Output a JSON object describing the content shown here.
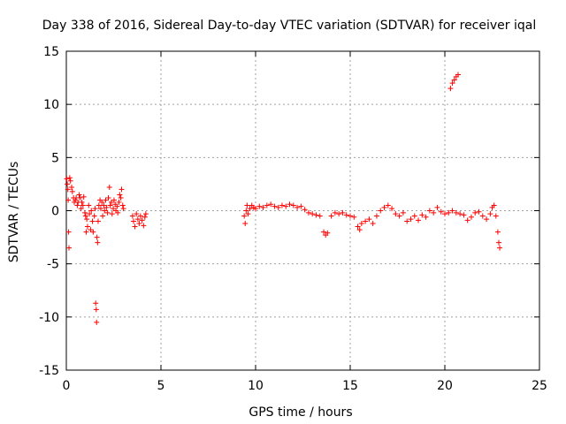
{
  "chart_data": {
    "type": "scatter",
    "title": "Day 338 of 2016, Sidereal Day-to-day VTEC variation (SDTVAR) for receiver iqal",
    "xlabel": "GPS time / hours",
    "ylabel": "SDTVAR / TECUs",
    "xlim": [
      0,
      25
    ],
    "ylim": [
      -15,
      15
    ],
    "xticks": [
      0,
      5,
      10,
      15,
      20,
      25
    ],
    "yticks": [
      -15,
      -10,
      -5,
      0,
      5,
      10,
      15
    ],
    "grid": true,
    "marker": "+",
    "color": "#ff0000",
    "series": [
      {
        "name": "SDTVAR",
        "points": [
          [
            0.02,
            3.0
          ],
          [
            0.05,
            2.5
          ],
          [
            0.08,
            2.0
          ],
          [
            0.1,
            1.0
          ],
          [
            0.12,
            -2.0
          ],
          [
            0.14,
            -3.5
          ],
          [
            0.18,
            3.1
          ],
          [
            0.22,
            2.8
          ],
          [
            0.28,
            2.2
          ],
          [
            0.32,
            1.8
          ],
          [
            0.38,
            1.2
          ],
          [
            0.42,
            0.8
          ],
          [
            0.48,
            1.0
          ],
          [
            0.52,
            1.2
          ],
          [
            0.58,
            0.5
          ],
          [
            0.62,
            0.8
          ],
          [
            0.68,
            1.5
          ],
          [
            0.72,
            1.2
          ],
          [
            0.78,
            0.2
          ],
          [
            0.82,
            0.8
          ],
          [
            0.88,
            0.5
          ],
          [
            0.92,
            1.3
          ],
          [
            0.98,
            -0.2
          ],
          [
            1.02,
            -0.5
          ],
          [
            1.05,
            -2.0
          ],
          [
            1.08,
            -0.8
          ],
          [
            1.12,
            -1.5
          ],
          [
            1.18,
            0.5
          ],
          [
            1.22,
            -0.3
          ],
          [
            1.28,
            -1.8
          ],
          [
            1.32,
            0.0
          ],
          [
            1.38,
            -1.0
          ],
          [
            1.42,
            -2.0
          ],
          [
            1.48,
            -0.5
          ],
          [
            1.52,
            0.2
          ],
          [
            1.55,
            -8.7
          ],
          [
            1.58,
            -9.3
          ],
          [
            1.6,
            -10.5
          ],
          [
            1.62,
            -2.5
          ],
          [
            1.65,
            -3.0
          ],
          [
            1.68,
            -1.0
          ],
          [
            1.72,
            0.5
          ],
          [
            1.78,
            1.0
          ],
          [
            1.82,
            0.2
          ],
          [
            1.88,
            0.8
          ],
          [
            1.92,
            -0.5
          ],
          [
            1.98,
            0.5
          ],
          [
            2.02,
            0.0
          ],
          [
            2.08,
            1.0
          ],
          [
            2.12,
            0.3
          ],
          [
            2.18,
            -0.2
          ],
          [
            2.22,
            1.2
          ],
          [
            2.28,
            2.2
          ],
          [
            2.32,
            0.5
          ],
          [
            2.38,
            0.8
          ],
          [
            2.42,
            -0.3
          ],
          [
            2.48,
            0.2
          ],
          [
            2.52,
            1.0
          ],
          [
            2.58,
            0.6
          ],
          [
            2.62,
            0.0
          ],
          [
            2.68,
            0.4
          ],
          [
            2.72,
            -0.2
          ],
          [
            2.78,
            0.8
          ],
          [
            2.82,
            1.5
          ],
          [
            2.88,
            1.2
          ],
          [
            2.92,
            2.0
          ],
          [
            2.98,
            0.5
          ],
          [
            3.02,
            0.2
          ],
          [
            3.5,
            -0.5
          ],
          [
            3.55,
            -1.0
          ],
          [
            3.62,
            -1.5
          ],
          [
            3.7,
            -0.3
          ],
          [
            3.78,
            -0.8
          ],
          [
            3.85,
            -1.2
          ],
          [
            3.92,
            -0.5
          ],
          [
            4.0,
            -0.9
          ],
          [
            4.08,
            -1.4
          ],
          [
            4.15,
            -0.6
          ],
          [
            4.2,
            -0.3
          ],
          [
            9.4,
            -0.5
          ],
          [
            9.45,
            -1.2
          ],
          [
            9.5,
            0.0
          ],
          [
            9.55,
            0.5
          ],
          [
            9.6,
            -0.3
          ],
          [
            9.7,
            0.2
          ],
          [
            9.8,
            0.5
          ],
          [
            9.9,
            0.3
          ],
          [
            10.0,
            0.2
          ],
          [
            10.2,
            0.4
          ],
          [
            10.4,
            0.3
          ],
          [
            10.6,
            0.5
          ],
          [
            10.8,
            0.6
          ],
          [
            11.0,
            0.4
          ],
          [
            11.2,
            0.3
          ],
          [
            11.4,
            0.5
          ],
          [
            11.6,
            0.4
          ],
          [
            11.8,
            0.6
          ],
          [
            12.0,
            0.5
          ],
          [
            12.2,
            0.3
          ],
          [
            12.4,
            0.4
          ],
          [
            12.6,
            0.1
          ],
          [
            12.8,
            -0.2
          ],
          [
            13.0,
            -0.3
          ],
          [
            13.2,
            -0.4
          ],
          [
            13.4,
            -0.5
          ],
          [
            13.6,
            -2.0
          ],
          [
            13.7,
            -2.3
          ],
          [
            13.8,
            -2.1
          ],
          [
            14.0,
            -0.5
          ],
          [
            14.2,
            -0.2
          ],
          [
            14.4,
            -0.3
          ],
          [
            14.6,
            -0.2
          ],
          [
            14.8,
            -0.4
          ],
          [
            15.0,
            -0.5
          ],
          [
            15.2,
            -0.6
          ],
          [
            15.4,
            -1.5
          ],
          [
            15.5,
            -1.8
          ],
          [
            15.6,
            -1.2
          ],
          [
            15.8,
            -1.0
          ],
          [
            16.0,
            -0.8
          ],
          [
            16.2,
            -1.2
          ],
          [
            16.4,
            -0.5
          ],
          [
            16.6,
            0.0
          ],
          [
            16.8,
            0.3
          ],
          [
            17.0,
            0.5
          ],
          [
            17.2,
            0.2
          ],
          [
            17.4,
            -0.3
          ],
          [
            17.6,
            -0.5
          ],
          [
            17.8,
            -0.2
          ],
          [
            18.0,
            -1.0
          ],
          [
            18.2,
            -0.8
          ],
          [
            18.4,
            -0.5
          ],
          [
            18.6,
            -0.9
          ],
          [
            18.8,
            -0.4
          ],
          [
            19.0,
            -0.6
          ],
          [
            19.2,
            0.0
          ],
          [
            19.4,
            -0.2
          ],
          [
            19.6,
            0.3
          ],
          [
            19.8,
            -0.1
          ],
          [
            20.0,
            -0.3
          ],
          [
            20.2,
            -0.2
          ],
          [
            20.3,
            11.5
          ],
          [
            20.4,
            12.0
          ],
          [
            20.5,
            12.3
          ],
          [
            20.6,
            12.6
          ],
          [
            20.7,
            12.8
          ],
          [
            20.4,
            0.0
          ],
          [
            20.6,
            -0.2
          ],
          [
            20.8,
            -0.3
          ],
          [
            21.0,
            -0.4
          ],
          [
            21.2,
            -0.9
          ],
          [
            21.4,
            -0.6
          ],
          [
            21.6,
            -0.2
          ],
          [
            21.8,
            -0.1
          ],
          [
            22.0,
            -0.5
          ],
          [
            22.2,
            -0.8
          ],
          [
            22.4,
            -0.3
          ],
          [
            22.5,
            0.3
          ],
          [
            22.6,
            0.5
          ],
          [
            22.7,
            -0.5
          ],
          [
            22.8,
            -2.0
          ],
          [
            22.85,
            -3.0
          ],
          [
            22.9,
            -3.5
          ]
        ]
      }
    ]
  }
}
